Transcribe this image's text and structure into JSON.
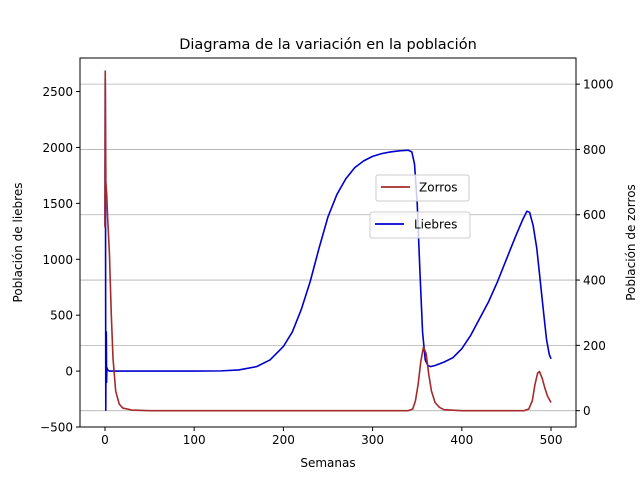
{
  "chart_data": {
    "type": "line",
    "title": "Diagrama de la variación en la población",
    "xlabel": "Semanas",
    "ylabel_left": "Población de liebres",
    "ylabel_right": "Población de zorros",
    "xlim": [
      -28,
      528
    ],
    "ylim_left": [
      -500,
      2800
    ],
    "ylim_right": [
      -50,
      1080
    ],
    "x_ticks": [
      0,
      100,
      200,
      300,
      400,
      500
    ],
    "y_ticks_left": [
      -500,
      0,
      500,
      1000,
      1500,
      2000,
      2500
    ],
    "y_ticks_right": [
      0,
      200,
      400,
      600,
      800,
      1000
    ],
    "grid": "horizontal lines at right-axis ticks",
    "series": [
      {
        "name": "Liebres",
        "axis": "left",
        "color": "#0000cd",
        "points": [
          [
            0,
            1300
          ],
          [
            0.3,
            2620
          ],
          [
            0.6,
            1500
          ],
          [
            0.9,
            -350
          ],
          [
            1.2,
            300
          ],
          [
            1.5,
            350
          ],
          [
            1.8,
            -100
          ],
          [
            2.2,
            30
          ],
          [
            3,
            10
          ],
          [
            5,
            0
          ],
          [
            20,
            0
          ],
          [
            50,
            0
          ],
          [
            100,
            0
          ],
          [
            130,
            2
          ],
          [
            150,
            10
          ],
          [
            170,
            40
          ],
          [
            185,
            100
          ],
          [
            200,
            220
          ],
          [
            210,
            350
          ],
          [
            220,
            550
          ],
          [
            230,
            800
          ],
          [
            240,
            1100
          ],
          [
            250,
            1380
          ],
          [
            260,
            1580
          ],
          [
            270,
            1720
          ],
          [
            280,
            1820
          ],
          [
            290,
            1880
          ],
          [
            300,
            1920
          ],
          [
            310,
            1945
          ],
          [
            320,
            1960
          ],
          [
            330,
            1970
          ],
          [
            340,
            1975
          ],
          [
            344,
            1960
          ],
          [
            347,
            1850
          ],
          [
            350,
            1500
          ],
          [
            353,
            900
          ],
          [
            356,
            350
          ],
          [
            359,
            100
          ],
          [
            362,
            50
          ],
          [
            365,
            40
          ],
          [
            370,
            50
          ],
          [
            380,
            80
          ],
          [
            390,
            120
          ],
          [
            400,
            200
          ],
          [
            410,
            320
          ],
          [
            420,
            470
          ],
          [
            430,
            620
          ],
          [
            440,
            800
          ],
          [
            450,
            1000
          ],
          [
            460,
            1200
          ],
          [
            468,
            1350
          ],
          [
            473,
            1430
          ],
          [
            476,
            1420
          ],
          [
            480,
            1300
          ],
          [
            484,
            1100
          ],
          [
            488,
            800
          ],
          [
            492,
            500
          ],
          [
            495,
            280
          ],
          [
            498,
            150
          ],
          [
            500,
            110
          ]
        ]
      },
      {
        "name": "Zorros",
        "axis": "right",
        "color": "#a52a2a",
        "points": [
          [
            0,
            560
          ],
          [
            0.3,
            1040
          ],
          [
            1,
            700
          ],
          [
            2,
            660
          ],
          [
            3,
            590
          ],
          [
            5,
            480
          ],
          [
            7,
            300
          ],
          [
            9,
            160
          ],
          [
            12,
            60
          ],
          [
            16,
            20
          ],
          [
            20,
            8
          ],
          [
            30,
            2
          ],
          [
            50,
            0
          ],
          [
            100,
            0
          ],
          [
            200,
            0
          ],
          [
            300,
            0
          ],
          [
            340,
            0
          ],
          [
            345,
            5
          ],
          [
            348,
            30
          ],
          [
            351,
            80
          ],
          [
            354,
            150
          ],
          [
            357,
            195
          ],
          [
            360,
            175
          ],
          [
            363,
            110
          ],
          [
            366,
            60
          ],
          [
            370,
            25
          ],
          [
            375,
            10
          ],
          [
            380,
            3
          ],
          [
            400,
            0
          ],
          [
            450,
            0
          ],
          [
            470,
            0
          ],
          [
            475,
            5
          ],
          [
            479,
            30
          ],
          [
            482,
            80
          ],
          [
            485,
            115
          ],
          [
            487,
            120
          ],
          [
            490,
            100
          ],
          [
            493,
            70
          ],
          [
            496,
            45
          ],
          [
            500,
            25
          ]
        ]
      }
    ],
    "legend": [
      {
        "name": "Zorros",
        "color": "#a52a2a",
        "placement": "center-right upper"
      },
      {
        "name": "Liebres",
        "color": "#0000cd",
        "placement": "center-right"
      }
    ]
  }
}
